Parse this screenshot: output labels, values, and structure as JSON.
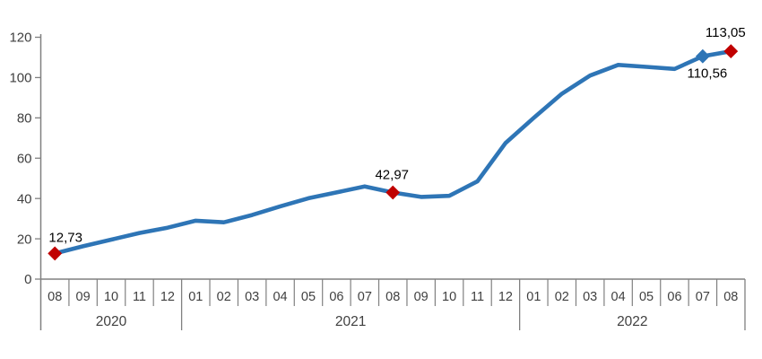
{
  "chart_data": {
    "type": "line",
    "title": "",
    "xlabel": "",
    "ylabel": "",
    "ylim": [
      0,
      120
    ],
    "yticks": [
      "0",
      "20",
      "40",
      "60",
      "80",
      "100",
      "120"
    ],
    "grid": false,
    "legend_position": "none",
    "number_format": "decimal-comma",
    "colors": {
      "line": "#2E75B6",
      "highlight_marker": "#C00000",
      "series_marker": "#2E75B6",
      "axis": "#808080",
      "axis_text": "#404040",
      "data_label_text": "#000000",
      "background": "#FFFFFF"
    },
    "year_groups": [
      {
        "year": "2020",
        "months": [
          "08",
          "09",
          "10",
          "11",
          "12"
        ]
      },
      {
        "year": "2021",
        "months": [
          "01",
          "02",
          "03",
          "04",
          "05",
          "06",
          "07",
          "08",
          "09",
          "10",
          "11",
          "12"
        ]
      },
      {
        "year": "2022",
        "months": [
          "01",
          "02",
          "03",
          "04",
          "05",
          "06",
          "07",
          "08"
        ]
      }
    ],
    "values": [
      12.73,
      16.3,
      19.6,
      22.9,
      25.5,
      29.0,
      28.2,
      31.8,
      36.1,
      40.1,
      43.0,
      46.0,
      42.97,
      40.8,
      41.3,
      48.5,
      67.5,
      80.0,
      92.0,
      101.0,
      106.3,
      105.3,
      104.3,
      110.56,
      113.05
    ],
    "annotations": [
      {
        "index": 0,
        "text": "12,73",
        "marker": "diamond",
        "marker_color": "#C00000",
        "label_position": "above-right"
      },
      {
        "index": 12,
        "text": "42,97",
        "marker": "diamond",
        "marker_color": "#C00000",
        "label_position": "above"
      },
      {
        "index": 23,
        "text": "110,56",
        "marker": "diamond",
        "marker_color": "#2E75B6",
        "label_position": "below-right"
      },
      {
        "index": 24,
        "text": "113,05",
        "marker": "diamond",
        "marker_color": "#C00000",
        "label_position": "above-left"
      }
    ]
  }
}
